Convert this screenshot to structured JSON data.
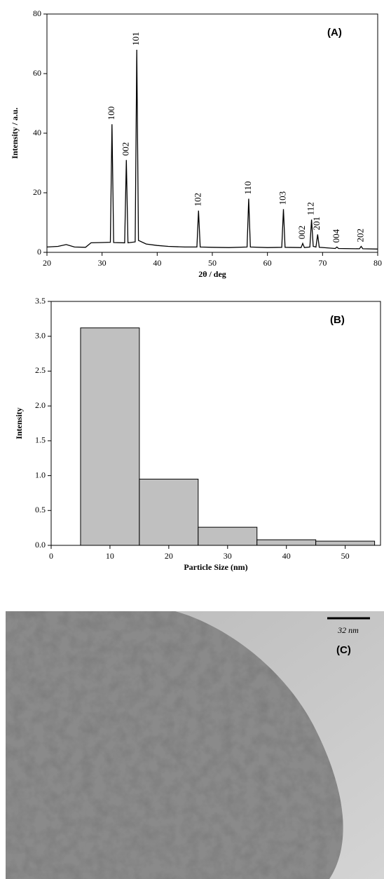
{
  "chart_data": [
    {
      "type": "line",
      "panel_label": "(A)",
      "y_label": "Intensity / a.u.",
      "x_label": "2θ / deg",
      "color": "#000000",
      "x": [
        20,
        22,
        23.5,
        25,
        27,
        28,
        30,
        31.5,
        31.8,
        32.1,
        34.1,
        34.4,
        34.7,
        36.0,
        36.3,
        36.6,
        38,
        40,
        42,
        45,
        47.2,
        47.5,
        47.8,
        50,
        53,
        56.3,
        56.6,
        56.9,
        60,
        62.6,
        62.9,
        63.2,
        66.1,
        66.4,
        66.7,
        67.7,
        68.0,
        68.3,
        68.8,
        69.1,
        69.4,
        72.3,
        72.6,
        72.9,
        76.7,
        77,
        77.3,
        80
      ],
      "values": [
        1.8,
        2,
        2.6,
        1.8,
        1.7,
        3.2,
        3.3,
        3.4,
        43,
        3.3,
        3.2,
        31,
        3.2,
        3.5,
        68,
        4,
        2.8,
        2.3,
        2,
        1.8,
        1.8,
        14,
        1.8,
        1.7,
        1.6,
        1.8,
        18,
        1.8,
        1.6,
        1.7,
        14.5,
        1.7,
        1.6,
        3,
        1.6,
        1.8,
        11,
        2,
        1.8,
        6,
        1.7,
        1.3,
        1.8,
        1.3,
        1.2,
        2,
        1.2,
        1.1
      ],
      "annotations": [
        {
          "text": "100",
          "x": 31.8
        },
        {
          "text": "002",
          "x": 34.4
        },
        {
          "text": "101",
          "x": 36.3
        },
        {
          "text": "102",
          "x": 47.5
        },
        {
          "text": "110",
          "x": 56.6
        },
        {
          "text": "103",
          "x": 62.9
        },
        {
          "text": "002",
          "x": 66.4
        },
        {
          "text": "112",
          "x": 68.0
        },
        {
          "text": "201",
          "x": 69.1
        },
        {
          "text": "004",
          "x": 72.6
        },
        {
          "text": "202",
          "x": 77
        }
      ],
      "xlim": [
        20,
        80
      ],
      "xticks": [
        20,
        30,
        40,
        50,
        60,
        70,
        80
      ],
      "ylim": [
        0,
        80
      ],
      "yticks": [
        0,
        20,
        40,
        60,
        80
      ]
    },
    {
      "type": "histogram",
      "panel_label": "(B)",
      "y_label": "Intensity",
      "x_label": "Particle Size (nm)",
      "color": "#c0c0c0",
      "bins": [
        5,
        15,
        25,
        35,
        45,
        55
      ],
      "values": [
        3.12,
        0.95,
        0.26,
        0.08,
        0.06
      ],
      "xlim": [
        0,
        56
      ],
      "xticks": [
        0,
        10,
        20,
        30,
        40,
        50
      ],
      "ylim": [
        0,
        3.5
      ],
      "yticks": [
        {
          "value": 0,
          "label": "0.0"
        },
        0.5,
        {
          "value": 1,
          "label": "1.0"
        },
        1.5,
        {
          "value": 2,
          "label": "2.0"
        },
        2.5,
        {
          "value": 3,
          "label": "3.0"
        },
        3.5
      ]
    }
  ],
  "image": {
    "scale_label": "32 nm",
    "panel_label": "(C)"
  }
}
